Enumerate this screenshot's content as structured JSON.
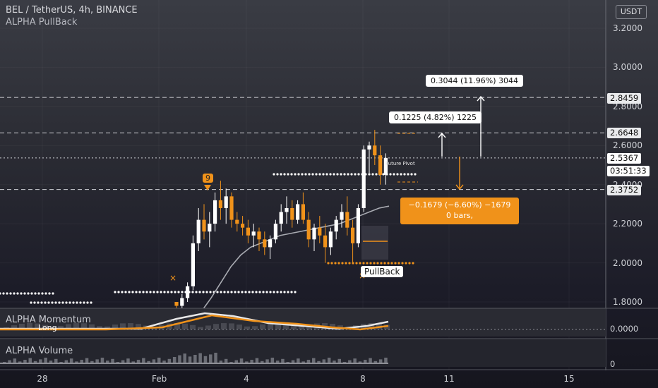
{
  "header": {
    "symbol_line": "BEL / TetherUS, 4h, BINANCE",
    "indicator": "ALPHA PullBack",
    "currency_button": "USDT"
  },
  "price_axis": {
    "ticks": [
      "3.2000",
      "3.0000",
      "2.8000",
      "2.6000",
      "2.4000",
      "2.2000",
      "2.0000",
      "1.8000"
    ],
    "levels": [
      {
        "label": "2.8459",
        "value": 2.8459
      },
      {
        "label": "2.6648",
        "value": 2.6648
      },
      {
        "label": "2.5367",
        "value": 2.5367
      },
      {
        "label": "03:51:33"
      },
      {
        "label": "2.3752",
        "value": 2.3752
      }
    ],
    "momentum_tick": "0.0000",
    "volume_tick": "0"
  },
  "time_axis": {
    "labels": [
      "28",
      "Feb",
      "4",
      "8",
      "11",
      "15"
    ]
  },
  "annotations": {
    "target_high": "0.3044 (11.96%) 3044",
    "target_mid": "0.1225 (4.82%) 1225",
    "stop_line1": "−0.1679 (−6.60%) −1679",
    "stop_line2": "0 bars,",
    "pullback_label": "PullBack",
    "count_marker": "9",
    "future_pivot": "Future Pivot",
    "long_label": "Long"
  },
  "panels": {
    "momentum_title": "ALPHA Momentum",
    "volume_title": "ALPHA Volume"
  },
  "colors": {
    "up": "#ffffff",
    "down": "#f0921a",
    "accent_orange": "#f0921a",
    "background_top": "#3a3c44",
    "background_bottom": "#15151e"
  },
  "chart_data": {
    "type": "candlestick",
    "candles": [
      [
        1.8,
        1.8,
        1.74,
        1.78
      ],
      [
        1.78,
        1.84,
        1.76,
        1.82
      ],
      [
        1.82,
        1.9,
        1.8,
        1.88
      ],
      [
        1.88,
        2.14,
        1.86,
        2.1
      ],
      [
        2.1,
        2.28,
        2.06,
        2.22
      ],
      [
        2.22,
        2.3,
        2.12,
        2.16
      ],
      [
        2.16,
        2.26,
        2.08,
        2.2
      ],
      [
        2.2,
        2.36,
        2.16,
        2.32
      ],
      [
        2.32,
        2.42,
        2.22,
        2.28
      ],
      [
        2.28,
        2.38,
        2.2,
        2.34
      ],
      [
        2.34,
        2.36,
        2.18,
        2.22
      ],
      [
        2.22,
        2.26,
        2.16,
        2.2
      ],
      [
        2.2,
        2.24,
        2.14,
        2.18
      ],
      [
        2.18,
        2.22,
        2.1,
        2.14
      ],
      [
        2.14,
        2.2,
        2.08,
        2.16
      ],
      [
        2.16,
        2.18,
        2.06,
        2.12
      ],
      [
        2.12,
        2.16,
        2.04,
        2.08
      ],
      [
        2.08,
        2.14,
        2.02,
        2.12
      ],
      [
        2.12,
        2.22,
        2.1,
        2.2
      ],
      [
        2.2,
        2.3,
        2.16,
        2.26
      ],
      [
        2.26,
        2.34,
        2.2,
        2.28
      ],
      [
        2.28,
        2.32,
        2.18,
        2.22
      ],
      [
        2.22,
        2.32,
        2.2,
        2.3
      ],
      [
        2.3,
        2.36,
        2.2,
        2.22
      ],
      [
        2.22,
        2.26,
        2.08,
        2.12
      ],
      [
        2.12,
        2.2,
        2.06,
        2.18
      ],
      [
        2.18,
        2.24,
        2.1,
        2.14
      ],
      [
        2.14,
        2.2,
        2.0,
        2.08
      ],
      [
        2.08,
        2.18,
        2.04,
        2.16
      ],
      [
        2.16,
        2.24,
        2.12,
        2.22
      ],
      [
        2.22,
        2.3,
        2.18,
        2.26
      ],
      [
        2.26,
        2.34,
        2.14,
        2.18
      ],
      [
        2.18,
        2.22,
        2.0,
        2.1
      ],
      [
        2.1,
        2.3,
        2.08,
        2.28
      ],
      [
        2.28,
        2.6,
        2.26,
        2.58
      ],
      [
        2.58,
        2.62,
        2.46,
        2.6
      ],
      [
        2.6,
        2.68,
        2.5,
        2.55
      ],
      [
        2.55,
        2.6,
        2.4,
        2.45
      ],
      [
        2.45,
        2.56,
        2.4,
        2.5367
      ]
    ],
    "moving_average": [
      1.75,
      1.82,
      1.9,
      1.98,
      2.04,
      2.08,
      2.1,
      2.12,
      2.14,
      2.15,
      2.16,
      2.17,
      2.18,
      2.19,
      2.2,
      2.22,
      2.24,
      2.26,
      2.28,
      2.29
    ],
    "ylim": [
      1.78,
      3.26
    ]
  }
}
